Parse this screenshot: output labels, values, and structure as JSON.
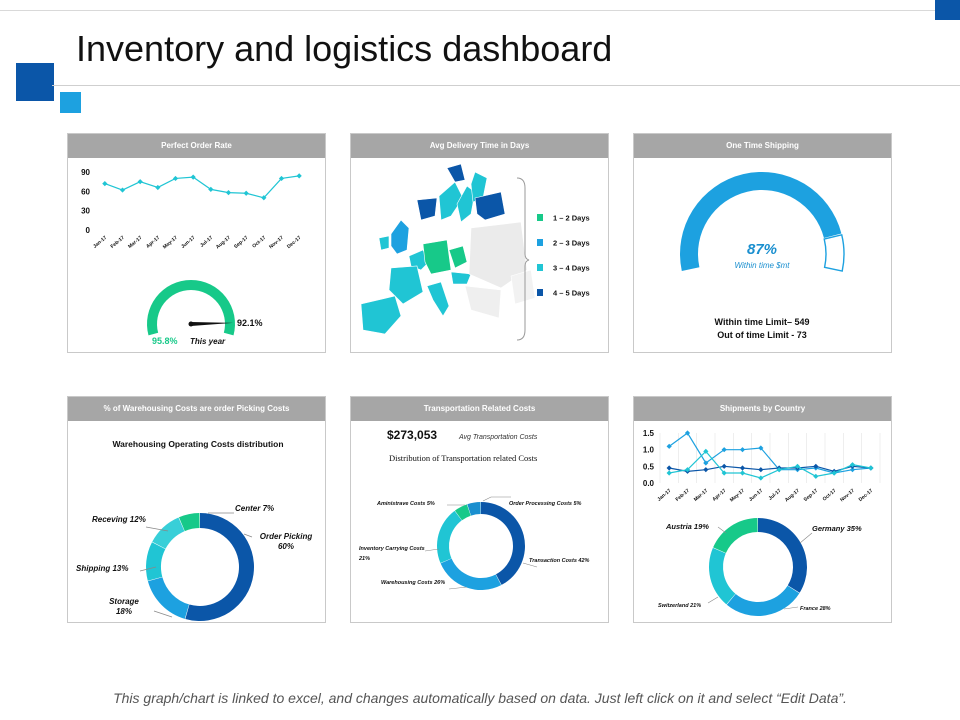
{
  "page": {
    "title": "Inventory and logistics dashboard",
    "footer": "This graph/chart is linked to excel, and changes automatically based on data. Just left click on it and select “Edit Data”."
  },
  "colors": {
    "dark_blue": "#0b56a8",
    "blue": "#1da1e0",
    "teal": "#20c5d4",
    "green": "#17c989",
    "header_gray": "#a6a6a6"
  },
  "panels": {
    "perfect_order": {
      "header": "Perfect Order Rate",
      "gauge_label": "92.1%",
      "this_year_value": "95.8%",
      "this_year_label": "This year"
    },
    "delivery": {
      "header": "Avg Delivery Time in Days",
      "legend": [
        {
          "label": "1 – 2 Days",
          "color": "#17c989"
        },
        {
          "label": "2 – 3 Days",
          "color": "#1da1e0"
        },
        {
          "label": "3 – 4 Days",
          "color": "#20c5d4"
        },
        {
          "label": "4 – 5 Days",
          "color": "#0b56a8"
        }
      ]
    },
    "shipping": {
      "header": "One Time Shipping",
      "percent": "87%",
      "sublabel": "Within time $mt",
      "within": "Within time Limit– 549",
      "out": "Out of time Limit - 73"
    },
    "warehousing": {
      "header": "% of Warehousing Costs are order Picking Costs",
      "subtitle": "Warehousing Operating Costs distribution"
    },
    "transport": {
      "header": "Transportation Related Costs",
      "amount": "$273,053",
      "amount_label": "Avg Transportation Costs",
      "subtitle": "Distribution of Transportation related Costs"
    },
    "shipments": {
      "header": "Shipments by Country"
    }
  },
  "chart_data": [
    {
      "id": "perfect-order-line",
      "type": "line",
      "categories": [
        "Jan-17",
        "Feb-17",
        "Mar-17",
        "Apr-17",
        "May-17",
        "Jun-17",
        "Jul-17",
        "Aug-17",
        "Sep-17",
        "Oct-17",
        "Nov-17",
        "Dec-17"
      ],
      "values": [
        72,
        62,
        75,
        66,
        80,
        82,
        63,
        58,
        57,
        50,
        80,
        84
      ],
      "ylim": [
        0,
        90
      ],
      "yticks": [
        "0",
        "30",
        "60",
        "90"
      ],
      "color": "#20c5d4"
    },
    {
      "id": "perfect-order-gauge",
      "type": "gauge",
      "value": 92.1,
      "color": "#17c989"
    },
    {
      "id": "one-time-shipping",
      "type": "gauge",
      "value": 87,
      "color": "#1da1e0"
    },
    {
      "id": "warehousing-donut",
      "type": "pie",
      "slices": [
        {
          "label": "Order Picking",
          "value": 60,
          "text": "Order Picking\n60%",
          "color": "#0b56a8"
        },
        {
          "label": "Storage",
          "value": 18,
          "text": "Storage\n18%",
          "color": "#1da1e0"
        },
        {
          "label": "Shipping",
          "value": 13,
          "text": "Shipping  13%",
          "color": "#20c5d4"
        },
        {
          "label": "Receving",
          "value": 12,
          "text": "Receving  12%",
          "color": "#38cfd8"
        },
        {
          "label": "Center",
          "value": 7,
          "text": "Center  7%",
          "color": "#17c989"
        }
      ]
    },
    {
      "id": "transport-donut",
      "type": "pie",
      "slices": [
        {
          "label": "Transaction Costs",
          "value": 42,
          "text": "Transaction   Costs  42%",
          "color": "#0b56a8"
        },
        {
          "label": "Warehousing Costs",
          "value": 26,
          "text": "Warehousing  Costs  26%",
          "color": "#1da1e0"
        },
        {
          "label": "Inventory Carrying Costs",
          "value": 21,
          "text": "Inventory  Carrying  Costs\n21%",
          "color": "#20c5d4"
        },
        {
          "label": "Aministrave Costs",
          "value": 5,
          "text": "Aministrave   Costs  5%",
          "color": "#17c989"
        },
        {
          "label": "Order Processing Costs",
          "value": 5,
          "text": "Order  Processing  Costs  5%",
          "color": "#1a8fcf"
        }
      ]
    },
    {
      "id": "shipments-line",
      "type": "line",
      "categories": [
        "Jan-17",
        "Feb-17",
        "Mar-17",
        "Apr-17",
        "May-17",
        "Jun-17",
        "Jul-17",
        "Aug-17",
        "Sep-17",
        "Oct-17",
        "Nov-17",
        "Dec-17"
      ],
      "ylim": [
        0,
        1.5
      ],
      "yticks": [
        "0.0",
        "0.5",
        "1.0",
        "1.5"
      ],
      "series": [
        {
          "values": [
            1.1,
            1.5,
            0.6,
            1.0,
            1.0,
            1.05,
            0.4,
            0.4,
            0.45,
            0.3,
            0.4,
            0.45
          ],
          "color": "#1da1e0"
        },
        {
          "values": [
            0.45,
            0.35,
            0.4,
            0.5,
            0.45,
            0.4,
            0.45,
            0.45,
            0.5,
            0.35,
            0.5,
            0.45
          ],
          "color": "#0b56a8"
        },
        {
          "values": [
            0.3,
            0.4,
            0.95,
            0.3,
            0.3,
            0.15,
            0.4,
            0.5,
            0.2,
            0.3,
            0.55,
            0.45
          ],
          "color": "#20c5d4"
        }
      ]
    },
    {
      "id": "country-donut",
      "type": "pie",
      "slices": [
        {
          "label": "Germany",
          "value": 35,
          "text": "Germany  35%",
          "color": "#0b56a8"
        },
        {
          "label": "France",
          "value": 28,
          "text": "France  28%",
          "color": "#1da1e0"
        },
        {
          "label": "Switzerland",
          "value": 21,
          "text": "Switzerland  21%",
          "color": "#20c5d4"
        },
        {
          "label": "Austria",
          "value": 19,
          "text": "Austria  19%",
          "color": "#17c989"
        }
      ]
    }
  ]
}
